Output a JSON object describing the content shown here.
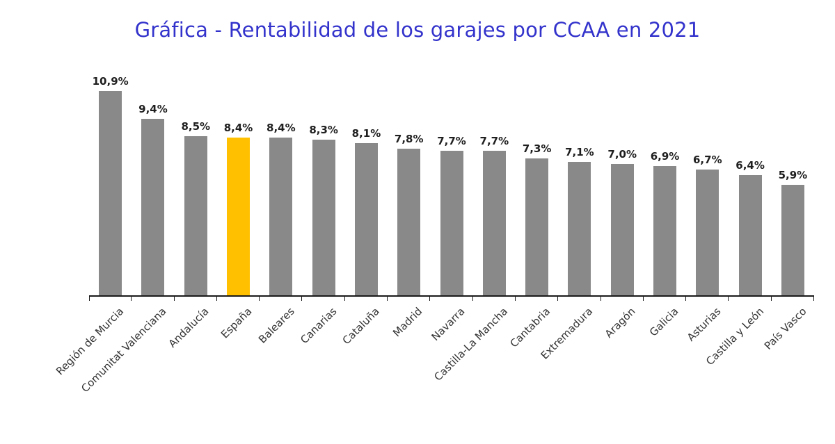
{
  "chart": {
    "title": "Gráfica - Rentabilidad de los garajes por CCAA en 2021",
    "title_color": "#3333CC",
    "bar_color": "#898989",
    "highlight_color": "#FFC000",
    "highlight_category": "España",
    "axis_color": "#1a1a1a"
  },
  "chart_data": {
    "type": "bar",
    "title": "Gráfica - Rentabilidad de los garajes por CCAA en 2021",
    "categories": [
      "Región de Murcia",
      "Comunitat Valenciana",
      "Andalucía",
      "España",
      "Baleares",
      "Canarias",
      "Cataluña",
      "Madrid",
      "Navarra",
      "Castilla-La Mancha",
      "Cantabria",
      "Extremadura",
      "Aragón",
      "Galicia",
      "Asturias",
      "Castilla y León",
      "País Vasco"
    ],
    "values": [
      10.9,
      9.4,
      8.5,
      8.4,
      8.4,
      8.3,
      8.1,
      7.8,
      7.7,
      7.7,
      7.3,
      7.1,
      7.0,
      6.9,
      6.7,
      6.4,
      5.9
    ],
    "labels": [
      "10,9%",
      "9,4%",
      "8,5%",
      "8,4%",
      "8,4%",
      "8,3%",
      "8,1%",
      "7,8%",
      "7,7%",
      "7,7%",
      "7,3%",
      "7,1%",
      "7,0%",
      "6,9%",
      "6,7%",
      "6,4%",
      "5,9%"
    ],
    "highlight_index": 3,
    "xlabel": "",
    "ylabel": "",
    "ylim": [
      0,
      11
    ],
    "grid": false,
    "legend": null,
    "data_labels": true,
    "x_tick_rotation": 45
  }
}
